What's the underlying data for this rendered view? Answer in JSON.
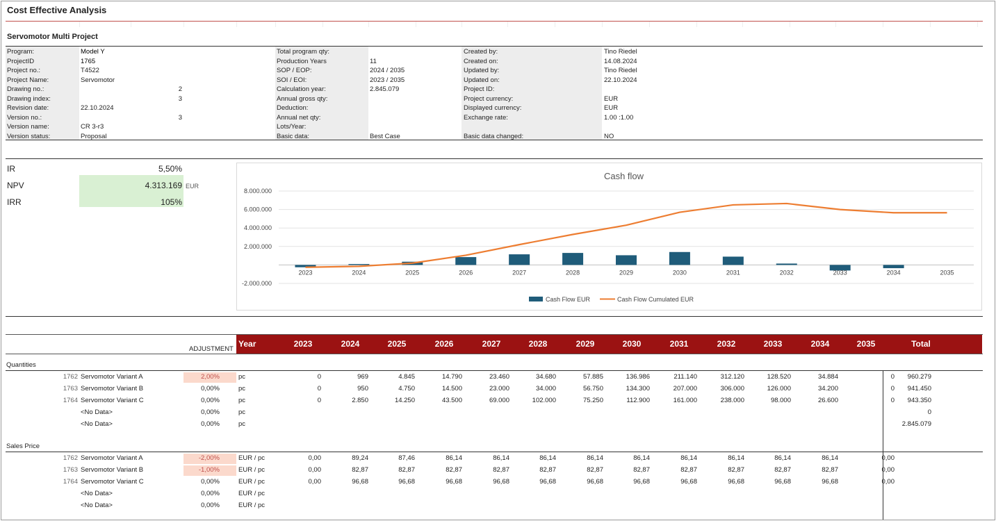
{
  "title": "Cost Effective Analysis",
  "subtitle": "Servomotor Multi Project",
  "info_left": [
    {
      "label": "Program:",
      "value": "Model Y",
      "bold": true
    },
    {
      "label": "ProjectID",
      "value": "1765",
      "bold": true
    },
    {
      "label": "Project no.:",
      "value": "T4522",
      "bold": false
    },
    {
      "label": "Project Name:",
      "value": "Servomotor",
      "bold": false
    },
    {
      "label": "Drawing no.:",
      "value": "",
      "num": "2"
    },
    {
      "label": "Drawing index:",
      "value": "",
      "num": "3"
    },
    {
      "label": "Revision date:",
      "value": "22.10.2024"
    },
    {
      "label": "Version no.:",
      "value": "",
      "num": "3"
    },
    {
      "label": "Version name:",
      "value": "CR 3-r3"
    },
    {
      "label": "Version status:",
      "value": "Proposal"
    }
  ],
  "info_mid": [
    {
      "label": "Total program qty:",
      "value": ""
    },
    {
      "label": "Production Years",
      "value": "11"
    },
    {
      "label": "SOP / EOP:",
      "value": "2024 / 2035"
    },
    {
      "label": "SOI / EOI:",
      "value": "2023 / 2035"
    },
    {
      "label": "Calculation year:",
      "value": "2.845.079"
    },
    {
      "label": "Annual gross qty:",
      "value": ""
    },
    {
      "label": "Deduction:",
      "value": ""
    },
    {
      "label": "Annual net qty:",
      "value": ""
    },
    {
      "label": "Lots/Year:",
      "value": ""
    },
    {
      "label": "Basic data:",
      "value": "Best Case"
    }
  ],
  "info_right": [
    {
      "label": "Created by:",
      "value": "Tino Riedel"
    },
    {
      "label": "Created on:",
      "value": "14.08.2024"
    },
    {
      "label": "Updated by:",
      "value": "Tino Riedel"
    },
    {
      "label": "Updated on:",
      "value": "22.10.2024"
    },
    {
      "label": "Project ID:",
      "value": ""
    },
    {
      "label": "Project currency:",
      "value": "EUR"
    },
    {
      "label": "Displayed currency:",
      "value": "EUR"
    },
    {
      "label": "Exchange rate:",
      "value": "1.00 :1.00"
    },
    {
      "label": "",
      "value": ""
    },
    {
      "label": "Basic data changed:",
      "value": "NO"
    }
  ],
  "kpi": {
    "ir_label": "IR",
    "ir_value": "5,50%",
    "npv_label": "NPV",
    "npv_value": "4.313.169",
    "npv_unit": "EUR",
    "irr_label": "IRR",
    "irr_value": "105%"
  },
  "chart_data": {
    "type": "bar",
    "title": "Cash flow",
    "categories": [
      "2023",
      "2024",
      "2025",
      "2026",
      "2027",
      "2028",
      "2029",
      "2030",
      "2031",
      "2032",
      "2033",
      "2034",
      "2035"
    ],
    "ylim": [
      -2000000,
      8000000
    ],
    "yticks": [
      "8.000.000",
      "6.000.000",
      "4.000.000",
      "2.000.000",
      "",
      "-2.000.000"
    ],
    "ytick_values": [
      8000000,
      6000000,
      4000000,
      2000000,
      0,
      -2000000
    ],
    "series": [
      {
        "name": "Cash Flow EUR",
        "kind": "bar",
        "color": "#1f5c7a",
        "values": [
          -250000,
          100000,
          350000,
          850000,
          1150000,
          1300000,
          1050000,
          1400000,
          900000,
          150000,
          -600000,
          -350000,
          0
        ]
      },
      {
        "name": "Cash Flow Cumulated EUR",
        "kind": "line",
        "color": "#ed7d31",
        "values": [
          -250000,
          -150000,
          200000,
          1050000,
          2200000,
          3300000,
          4300000,
          5700000,
          6500000,
          6650000,
          6000000,
          5650000,
          5650000
        ]
      }
    ],
    "legend": "bottom"
  },
  "table": {
    "adjustment_label": "ADJUSTMENT",
    "year_label": "Year",
    "years": [
      "2023",
      "2024",
      "2025",
      "2026",
      "2027",
      "2028",
      "2029",
      "2030",
      "2031",
      "2032",
      "2033",
      "2034",
      "2035"
    ],
    "total_label": "Total",
    "sections": [
      {
        "title": "Quantities",
        "rows": [
          {
            "id": "1762",
            "name": "Servomotor Variant A",
            "adj": "2,00%",
            "adj_hl": true,
            "adj_red": true,
            "unit": "pc",
            "vals": [
              "0",
              "969",
              "4.845",
              "14.790",
              "23.460",
              "34.680",
              "57.885",
              "136.986",
              "211.140",
              "312.120",
              "128.520",
              "34.884",
              "0"
            ],
            "total": "960.279"
          },
          {
            "id": "1763",
            "name": "Servomotor Variant B",
            "adj": "0,00%",
            "adj_hl": false,
            "adj_red": false,
            "unit": "pc",
            "vals": [
              "0",
              "950",
              "4.750",
              "14.500",
              "23.000",
              "34.000",
              "56.750",
              "134.300",
              "207.000",
              "306.000",
              "126.000",
              "34.200",
              "0"
            ],
            "total": "941.450"
          },
          {
            "id": "1764",
            "name": "Servomotor Variant C",
            "adj": "0,00%",
            "adj_hl": false,
            "adj_red": false,
            "unit": "pc",
            "vals": [
              "0",
              "2.850",
              "14.250",
              "43.500",
              "69.000",
              "102.000",
              "75.250",
              "112.900",
              "161.000",
              "238.000",
              "98.000",
              "26.600",
              "0"
            ],
            "total": "943.350"
          },
          {
            "id": "",
            "name": "<No Data>",
            "adj": "0,00%",
            "adj_hl": false,
            "adj_red": false,
            "unit": "pc",
            "vals": [
              "",
              "",
              "",
              "",
              "",
              "",
              "",
              "",
              "",
              "",
              "",
              "",
              ""
            ],
            "total": "0"
          },
          {
            "id": "",
            "name": "<No Data>",
            "adj": "0,00%",
            "adj_hl": false,
            "adj_red": false,
            "unit": "pc",
            "vals": [
              "",
              "",
              "",
              "",
              "",
              "",
              "",
              "",
              "",
              "",
              "",
              "",
              ""
            ],
            "total": "2.845.079"
          }
        ]
      },
      {
        "title": "Sales Price",
        "rows": [
          {
            "id": "1762",
            "name": "Servomotor Variant A",
            "adj": "-2,00%",
            "adj_hl": true,
            "adj_red": true,
            "unit": "EUR / pc",
            "vals": [
              "0,00",
              "89,24",
              "87,46",
              "86,14",
              "86,14",
              "86,14",
              "86,14",
              "86,14",
              "86,14",
              "86,14",
              "86,14",
              "86,14",
              "0,00"
            ],
            "total": ""
          },
          {
            "id": "1763",
            "name": "Servomotor Variant B",
            "adj": "-1,00%",
            "adj_hl": true,
            "adj_red": true,
            "unit": "EUR / pc",
            "vals": [
              "0,00",
              "82,87",
              "82,87",
              "82,87",
              "82,87",
              "82,87",
              "82,87",
              "82,87",
              "82,87",
              "82,87",
              "82,87",
              "82,87",
              "0,00"
            ],
            "total": ""
          },
          {
            "id": "1764",
            "name": "Servomotor Variant C",
            "adj": "0,00%",
            "adj_hl": false,
            "adj_red": false,
            "unit": "EUR / pc",
            "vals": [
              "0,00",
              "96,68",
              "96,68",
              "96,68",
              "96,68",
              "96,68",
              "96,68",
              "96,68",
              "96,68",
              "96,68",
              "96,68",
              "96,68",
              "0,00"
            ],
            "total": ""
          },
          {
            "id": "",
            "name": "<No Data>",
            "adj": "0,00%",
            "adj_hl": false,
            "adj_red": false,
            "unit": "EUR / pc",
            "vals": [
              "",
              "",
              "",
              "",
              "",
              "",
              "",
              "",
              "",
              "",
              "",
              "",
              ""
            ],
            "total": ""
          },
          {
            "id": "",
            "name": "<No Data>",
            "adj": "0,00%",
            "adj_hl": false,
            "adj_red": false,
            "unit": "EUR / pc",
            "vals": [
              "",
              "",
              "",
              "",
              "",
              "",
              "",
              "",
              "",
              "",
              "",
              "",
              ""
            ],
            "total": ""
          }
        ]
      }
    ]
  }
}
